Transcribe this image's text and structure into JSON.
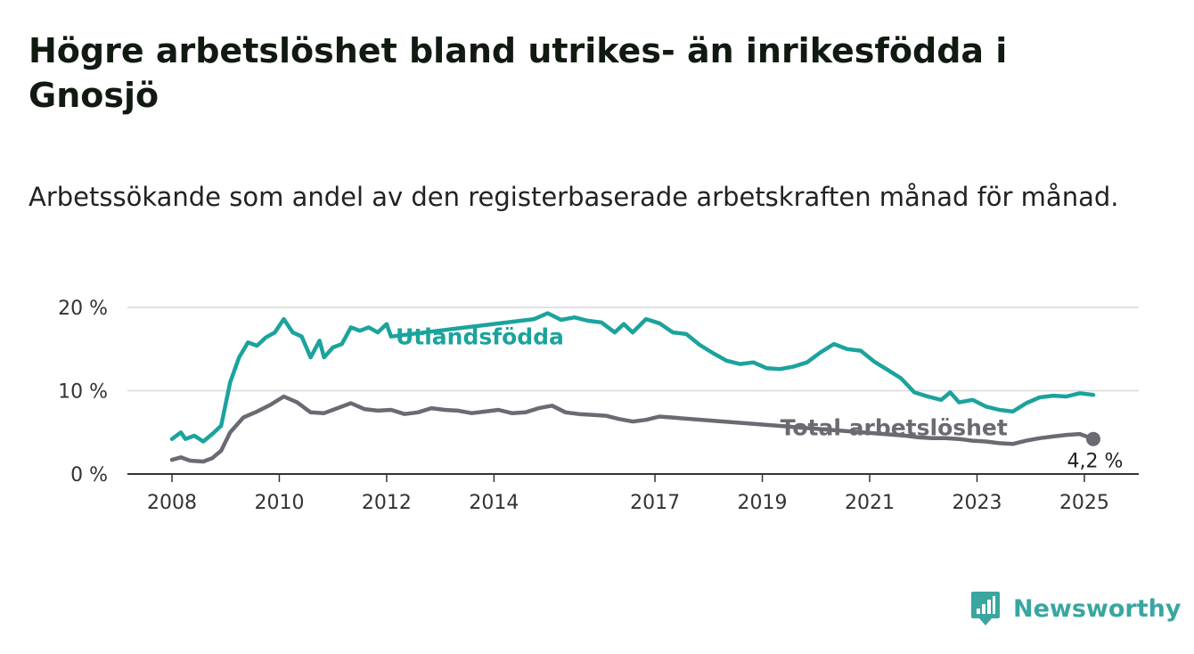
{
  "title": "Högre arbetslöshet bland utrikes- än inrikesfödda i Gnosjö",
  "subtitle": "Arbetssökande som andel av den registerbaserade arbetskraften månad för månad.",
  "brand": {
    "name": "Newsworthy",
    "icon": "newsworthy-logo-icon",
    "color": "#3aa6a0"
  },
  "colors": {
    "utlandsfodda": "#1ba39c",
    "total": "#6b6a72",
    "grid": "#d9d9d9",
    "axis": "#333333"
  },
  "chart_data": {
    "type": "line",
    "xlim": [
      "2008-01",
      "2025-04"
    ],
    "ylim": [
      0,
      20
    ],
    "grid": true,
    "y_ticks": [
      {
        "value": 0,
        "label": "0 %"
      },
      {
        "value": 10,
        "label": "10 %"
      },
      {
        "value": 20,
        "label": "20 %"
      }
    ],
    "x_ticks": [
      {
        "date": "2008-01",
        "label": "2008"
      },
      {
        "date": "2010-01",
        "label": "2010"
      },
      {
        "date": "2012-01",
        "label": "2012"
      },
      {
        "date": "2014-01",
        "label": "2014"
      },
      {
        "date": "2017-01",
        "label": "2017"
      },
      {
        "date": "2019-01",
        "label": "2019"
      },
      {
        "date": "2021-01",
        "label": "2021"
      },
      {
        "date": "2023-01",
        "label": "2023"
      },
      {
        "date": "2025-01",
        "label": "2025"
      }
    ],
    "series": [
      {
        "name": "Utlandsfödda",
        "color": "#1ba39c",
        "label_date": "2012-03",
        "label_value": 16.5,
        "points": [
          [
            "2008-01",
            4.2
          ],
          [
            "2008-03",
            5.0
          ],
          [
            "2008-04",
            4.2
          ],
          [
            "2008-06",
            4.6
          ],
          [
            "2008-08",
            3.9
          ],
          [
            "2008-10",
            4.8
          ],
          [
            "2008-12",
            5.8
          ],
          [
            "2009-02",
            11.0
          ],
          [
            "2009-04",
            14.0
          ],
          [
            "2009-06",
            15.8
          ],
          [
            "2009-08",
            15.4
          ],
          [
            "2009-10",
            16.4
          ],
          [
            "2009-12",
            17.0
          ],
          [
            "2010-02",
            18.6
          ],
          [
            "2010-04",
            17.0
          ],
          [
            "2010-06",
            16.5
          ],
          [
            "2010-08",
            14.0
          ],
          [
            "2010-10",
            16.0
          ],
          [
            "2010-11",
            14.0
          ],
          [
            "2011-01",
            15.2
          ],
          [
            "2011-03",
            15.6
          ],
          [
            "2011-05",
            17.6
          ],
          [
            "2011-07",
            17.2
          ],
          [
            "2011-09",
            17.6
          ],
          [
            "2011-11",
            17.0
          ],
          [
            "2012-01",
            18.0
          ],
          [
            "2012-02",
            16.5
          ],
          [
            "2014-10",
            18.6
          ],
          [
            "2015-01",
            19.3
          ],
          [
            "2015-04",
            18.5
          ],
          [
            "2015-07",
            18.8
          ],
          [
            "2015-10",
            18.4
          ],
          [
            "2016-01",
            18.2
          ],
          [
            "2016-04",
            17.0
          ],
          [
            "2016-06",
            18.0
          ],
          [
            "2016-08",
            17.0
          ],
          [
            "2016-11",
            18.6
          ],
          [
            "2017-02",
            18.1
          ],
          [
            "2017-05",
            17.0
          ],
          [
            "2017-08",
            16.8
          ],
          [
            "2017-11",
            15.5
          ],
          [
            "2018-02",
            14.5
          ],
          [
            "2018-05",
            13.6
          ],
          [
            "2018-08",
            13.2
          ],
          [
            "2018-11",
            13.4
          ],
          [
            "2019-02",
            12.7
          ],
          [
            "2019-05",
            12.6
          ],
          [
            "2019-08",
            12.9
          ],
          [
            "2019-11",
            13.4
          ],
          [
            "2020-02",
            14.6
          ],
          [
            "2020-05",
            15.6
          ],
          [
            "2020-08",
            15.0
          ],
          [
            "2020-11",
            14.8
          ],
          [
            "2021-02",
            13.5
          ],
          [
            "2021-05",
            12.5
          ],
          [
            "2021-08",
            11.5
          ],
          [
            "2021-11",
            9.8
          ],
          [
            "2022-02",
            9.3
          ],
          [
            "2022-05",
            8.9
          ],
          [
            "2022-07",
            9.8
          ],
          [
            "2022-09",
            8.6
          ],
          [
            "2022-12",
            8.9
          ],
          [
            "2023-03",
            8.1
          ],
          [
            "2023-06",
            7.7
          ],
          [
            "2023-09",
            7.5
          ],
          [
            "2023-12",
            8.5
          ],
          [
            "2024-03",
            9.2
          ],
          [
            "2024-06",
            9.4
          ],
          [
            "2024-09",
            9.3
          ],
          [
            "2024-12",
            9.7
          ],
          [
            "2025-03",
            9.5
          ]
        ]
      },
      {
        "name": "Total arbetslöshet",
        "color": "#6b6a72",
        "label_date": "2019-05",
        "label_value": 5.6,
        "end_value": 4.2,
        "end_label": "4,2 %",
        "points": [
          [
            "2008-01",
            1.7
          ],
          [
            "2008-03",
            2.0
          ],
          [
            "2008-05",
            1.6
          ],
          [
            "2008-08",
            1.5
          ],
          [
            "2008-10",
            1.9
          ],
          [
            "2008-12",
            2.8
          ],
          [
            "2009-02",
            5.0
          ],
          [
            "2009-05",
            6.8
          ],
          [
            "2009-08",
            7.5
          ],
          [
            "2009-11",
            8.3
          ],
          [
            "2010-02",
            9.3
          ],
          [
            "2010-05",
            8.6
          ],
          [
            "2010-08",
            7.4
          ],
          [
            "2010-11",
            7.3
          ],
          [
            "2011-02",
            7.9
          ],
          [
            "2011-05",
            8.5
          ],
          [
            "2011-08",
            7.8
          ],
          [
            "2011-11",
            7.6
          ],
          [
            "2012-02",
            7.7
          ],
          [
            "2012-05",
            7.2
          ],
          [
            "2012-08",
            7.4
          ],
          [
            "2012-11",
            7.9
          ],
          [
            "2013-02",
            7.7
          ],
          [
            "2013-05",
            7.6
          ],
          [
            "2013-08",
            7.3
          ],
          [
            "2013-11",
            7.5
          ],
          [
            "2014-02",
            7.7
          ],
          [
            "2014-05",
            7.3
          ],
          [
            "2014-08",
            7.4
          ],
          [
            "2014-11",
            7.9
          ],
          [
            "2015-02",
            8.2
          ],
          [
            "2015-05",
            7.4
          ],
          [
            "2015-08",
            7.2
          ],
          [
            "2015-11",
            7.1
          ],
          [
            "2016-02",
            7.0
          ],
          [
            "2016-05",
            6.6
          ],
          [
            "2016-08",
            6.3
          ],
          [
            "2016-11",
            6.5
          ],
          [
            "2017-02",
            6.9
          ],
          [
            "2021-09",
            4.6
          ],
          [
            "2021-12",
            4.4
          ],
          [
            "2022-03",
            4.3
          ],
          [
            "2022-06",
            4.3
          ],
          [
            "2022-09",
            4.2
          ],
          [
            "2022-12",
            4.0
          ],
          [
            "2023-03",
            3.9
          ],
          [
            "2023-06",
            3.7
          ],
          [
            "2023-09",
            3.6
          ],
          [
            "2023-12",
            4.0
          ],
          [
            "2024-03",
            4.3
          ],
          [
            "2024-06",
            4.5
          ],
          [
            "2024-09",
            4.7
          ],
          [
            "2024-12",
            4.8
          ],
          [
            "2025-03",
            4.2
          ]
        ]
      }
    ]
  }
}
